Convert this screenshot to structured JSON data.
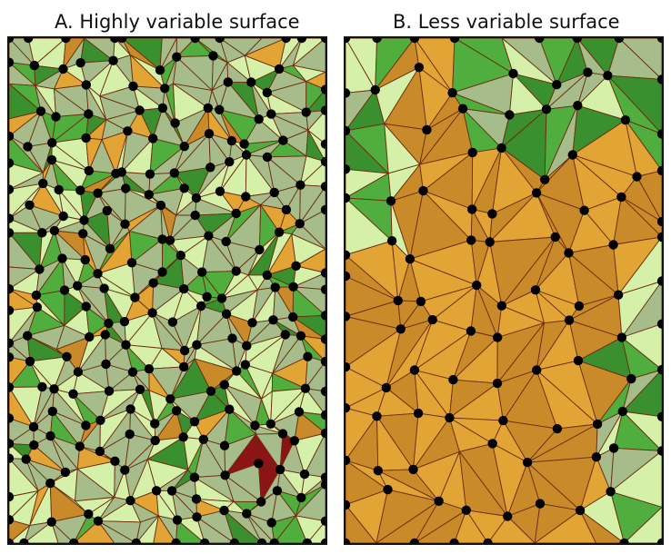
{
  "panels": [
    {
      "id": "A",
      "title": "A. Highly variable surface"
    },
    {
      "id": "B",
      "title": "B. Less variable surface"
    }
  ],
  "colors": {
    "pale_green": "#d4f0a9",
    "sage": "#a6bd8b",
    "mid_green": "#4fae3d",
    "dark_green": "#3a8f2e",
    "light_orange": "#e2a535",
    "dark_orange": "#c98a2a",
    "red": "#8b1414",
    "edge": "#6b2d0e",
    "node": "#000000"
  },
  "icons": [
    "tin-node-dot"
  ]
}
